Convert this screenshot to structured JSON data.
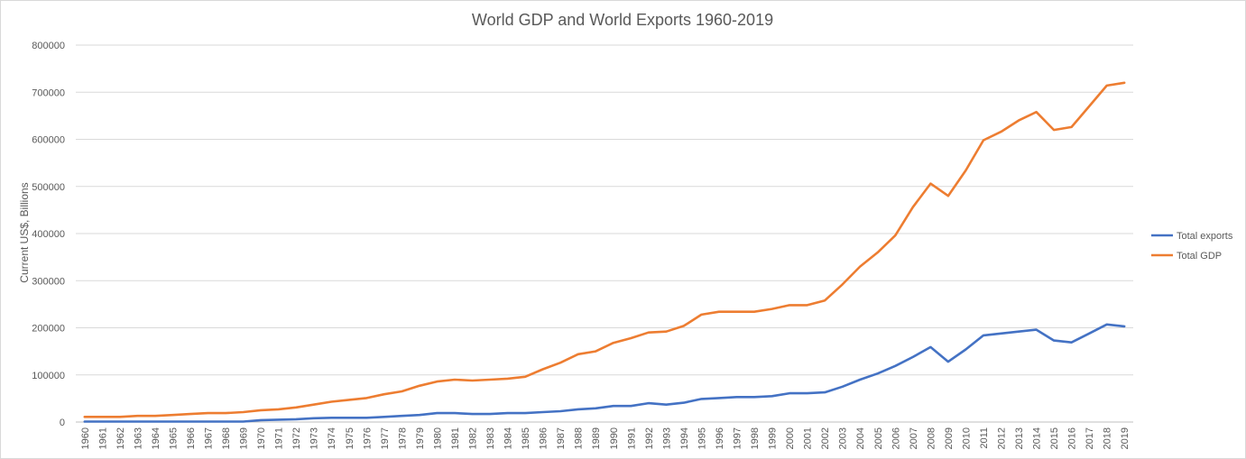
{
  "chart_data": {
    "type": "line",
    "title": "World GDP and World Exports 1960-2019",
    "xlabel": "",
    "ylabel": "Current US$, Billions",
    "ylim": [
      0,
      800000
    ],
    "yticks": [
      "0",
      "100000",
      "200000",
      "300000",
      "400000",
      "500000",
      "600000",
      "700000",
      "800000"
    ],
    "grid": true,
    "legend_position": "right",
    "categories": [
      "1960",
      "1961",
      "1962",
      "1963",
      "1964",
      "1965",
      "1966",
      "1967",
      "1968",
      "1969",
      "1970",
      "1971",
      "1972",
      "1973",
      "1974",
      "1975",
      "1976",
      "1977",
      "1978",
      "1979",
      "1980",
      "1981",
      "1982",
      "1983",
      "1984",
      "1985",
      "1986",
      "1987",
      "1988",
      "1989",
      "1990",
      "1991",
      "1992",
      "1993",
      "1994",
      "1995",
      "1996",
      "1997",
      "1998",
      "1999",
      "2000",
      "2001",
      "2002",
      "2003",
      "2004",
      "2005",
      "2006",
      "2007",
      "2008",
      "2009",
      "2010",
      "2011",
      "2012",
      "2013",
      "2014",
      "2015",
      "2016",
      "2017",
      "2018",
      "2019"
    ],
    "series": [
      {
        "name": "Total exports",
        "color": "#4472c4",
        "values": [
          1000,
          1000,
          1000,
          1000,
          1000,
          1000,
          1000,
          1000,
          1000,
          1000,
          4000,
          5000,
          6000,
          8000,
          9000,
          9000,
          9000,
          11000,
          13000,
          15000,
          19000,
          19000,
          17000,
          17000,
          19000,
          19000,
          21000,
          23000,
          27000,
          29000,
          34000,
          34000,
          40000,
          37000,
          41000,
          49000,
          51000,
          53000,
          53000,
          55000,
          61000,
          61000,
          63000,
          75000,
          90000,
          103000,
          119000,
          138000,
          159000,
          128000,
          154000,
          184000,
          188000,
          192000,
          196000,
          173000,
          169000,
          188000,
          207000,
          203000
        ]
      },
      {
        "name": "Total GDP",
        "color": "#ed7d31",
        "values": [
          11000,
          11000,
          11000,
          13000,
          13000,
          15000,
          17000,
          19000,
          19000,
          21000,
          25000,
          27000,
          31000,
          37000,
          43000,
          47000,
          51000,
          59000,
          65000,
          77000,
          86000,
          90000,
          88000,
          90000,
          92000,
          96000,
          112000,
          126000,
          144000,
          150000,
          168000,
          178000,
          190000,
          192000,
          204000,
          228000,
          234000,
          234000,
          234000,
          240000,
          248000,
          248000,
          258000,
          292000,
          330000,
          360000,
          396000,
          456000,
          506000,
          480000,
          534000,
          598000,
          616000,
          640000,
          658000,
          620000,
          626000,
          670000,
          714000,
          720000
        ]
      }
    ]
  }
}
